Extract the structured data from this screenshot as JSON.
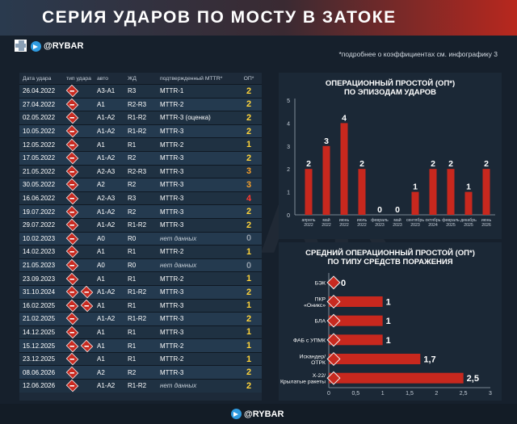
{
  "header": {
    "title": "СЕРИЯ УДАРОВ ПО МОСТУ В ЗАТОКЕ"
  },
  "brand": {
    "handle": "@RYBAR"
  },
  "note": "*подробнее о коэффициентах см. инфографику 3",
  "watermark": "RYBAR",
  "table": {
    "headers": [
      "Дата удара",
      "тип удара",
      "авто",
      "ЖД",
      "подтвержденный MTTR*",
      "ОП*"
    ],
    "rows": [
      {
        "date": "26.04.2022",
        "icons": 1,
        "auto": "А3-А1",
        "rail": "R3",
        "mttr": "MTTR-1",
        "op": "2",
        "op_color": "#ffd43b"
      },
      {
        "date": "27.04.2022",
        "icons": 1,
        "auto": "А1",
        "rail": "R2-R3",
        "mttr": "MTTR-2",
        "op": "2",
        "op_color": "#ffd43b"
      },
      {
        "date": "02.05.2022",
        "icons": 1,
        "auto": "А1-А2",
        "rail": "R1-R2",
        "mttr": "MTTR-3 (оценка)",
        "op": "2",
        "op_color": "#ffd43b"
      },
      {
        "date": "10.05.2022",
        "icons": 1,
        "auto": "А1-А2",
        "rail": "R1-R2",
        "mttr": "MTTR-3",
        "op": "2",
        "op_color": "#ffd43b"
      },
      {
        "date": "12.05.2022",
        "icons": 1,
        "auto": "А1",
        "rail": "R1",
        "mttr": "MTTR-2",
        "op": "1",
        "op_color": "#ffd43b"
      },
      {
        "date": "17.05.2022",
        "icons": 1,
        "auto": "А1-А2",
        "rail": "R2",
        "mttr": "MTTR-3",
        "op": "2",
        "op_color": "#ffd43b"
      },
      {
        "date": "21.05.2022",
        "icons": 1,
        "auto": "А2-А3",
        "rail": "R2-R3",
        "mttr": "MTTR-3",
        "op": "3",
        "op_color": "#f59f2b"
      },
      {
        "date": "30.05.2022",
        "icons": 1,
        "auto": "А2",
        "rail": "R2",
        "mttr": "MTTR-3",
        "op": "3",
        "op_color": "#f59f2b"
      },
      {
        "date": "16.06.2022",
        "icons": 1,
        "auto": "А2-А3",
        "rail": "R3",
        "mttr": "MTTR-3",
        "op": "4",
        "op_color": "#ff3b30"
      },
      {
        "date": "19.07.2022",
        "icons": 1,
        "auto": "А1-А2",
        "rail": "R2",
        "mttr": "MTTR-3",
        "op": "2",
        "op_color": "#ffd43b"
      },
      {
        "date": "29.07.2022",
        "icons": 1,
        "auto": "А1-А2",
        "rail": "R1-R2",
        "mttr": "MTTR-3",
        "op": "2",
        "op_color": "#ffd43b"
      },
      {
        "date": "10.02.2023",
        "icons": 1,
        "auto": "А0",
        "rail": "R0",
        "mttr": "нет данных",
        "op": "0",
        "op_color": "#8f9aa6",
        "nodata": true
      },
      {
        "date": "14.02.2023",
        "icons": 1,
        "auto": "А1",
        "rail": "R1",
        "mttr": "MTTR-2",
        "op": "1",
        "op_color": "#ffd43b"
      },
      {
        "date": "21.05.2023",
        "icons": 1,
        "auto": "А0",
        "rail": "R0",
        "mttr": "нет данных",
        "op": "0",
        "op_color": "#8f9aa6",
        "nodata": true
      },
      {
        "date": "23.09.2023",
        "icons": 1,
        "auto": "А1",
        "rail": "R1",
        "mttr": "MTTR-2",
        "op": "1",
        "op_color": "#ffd43b"
      },
      {
        "date": "31.10.2024",
        "icons": 2,
        "auto": "А1-А2",
        "rail": "R1-R2",
        "mttr": "MTTR-3",
        "op": "2",
        "op_color": "#ffd43b"
      },
      {
        "date": "16.02.2025",
        "icons": 2,
        "auto": "А1",
        "rail": "R1",
        "mttr": "MTTR-3",
        "op": "1",
        "op_color": "#ffd43b"
      },
      {
        "date": "21.02.2025",
        "icons": 1,
        "auto": "А1-А2",
        "rail": "R1-R2",
        "mttr": "MTTR-3",
        "op": "2",
        "op_color": "#ffd43b"
      },
      {
        "date": "14.12.2025",
        "icons": 1,
        "auto": "А1",
        "rail": "R1",
        "mttr": "MTTR-3",
        "op": "1",
        "op_color": "#ffd43b"
      },
      {
        "date": "15.12.2025",
        "icons": 2,
        "auto": "А1",
        "rail": "R1",
        "mttr": "MTTR-2",
        "op": "1",
        "op_color": "#ffd43b"
      },
      {
        "date": "23.12.2025",
        "icons": 1,
        "auto": "А1",
        "rail": "R1",
        "mttr": "MTTR-2",
        "op": "1",
        "op_color": "#ffd43b"
      },
      {
        "date": "08.06.2026",
        "icons": 1,
        "auto": "А2",
        "rail": "R2",
        "mttr": "MTTR-3",
        "op": "2",
        "op_color": "#ffd43b"
      },
      {
        "date": "12.06.2026",
        "icons": 1,
        "auto": "А1-А2",
        "rail": "R1-R2",
        "mttr": "нет данных",
        "op": "2",
        "op_color": "#ffd43b",
        "nodata": true
      }
    ]
  },
  "chart_data": [
    {
      "type": "bar",
      "title": "ОПЕРАЦИОННЫЙ ПРОСТОЙ (ОП*)\nПО ЭПИЗОДАМ УДАРОВ",
      "categories": [
        "апрель 2022",
        "май 2022",
        "июнь 2022",
        "июль 2022",
        "февраль 2023",
        "май 2023",
        "сентябрь 2023",
        "октябрь 2024",
        "февраль 2025",
        "декабрь 2025",
        "июнь 2026"
      ],
      "values": [
        2,
        3,
        4,
        2,
        0,
        0,
        1,
        2,
        2,
        1,
        2
      ],
      "ylim": [
        0,
        5
      ],
      "yticks": [
        0,
        1,
        2,
        3,
        4,
        5
      ],
      "grid": false,
      "color": "#c8281e"
    },
    {
      "type": "bar",
      "orientation": "horizontal",
      "title": "СРЕДНИЙ ОПЕРАЦИОННЫЙ ПРОСТОЙ (ОП*)\nПО ТИПУ СРЕДСТВ ПОРАЖЕНИЯ",
      "categories": [
        "БЭК",
        "ПКР «Оникс»",
        "БЛА",
        "ФАБ с УПМК",
        "Искандер/ ОТРК",
        "Х-22/ Крылатые ракеты"
      ],
      "values": [
        0,
        1,
        1,
        1,
        1.7,
        2.5
      ],
      "value_labels": [
        "0",
        "1",
        "1",
        "1",
        "1,7",
        "2,5"
      ],
      "xlim": [
        0,
        3
      ],
      "xticks": [
        "0",
        "0,5",
        "1",
        "1,5",
        "2",
        "2,5",
        "3"
      ],
      "grid": false,
      "color": "#c8281e"
    }
  ]
}
